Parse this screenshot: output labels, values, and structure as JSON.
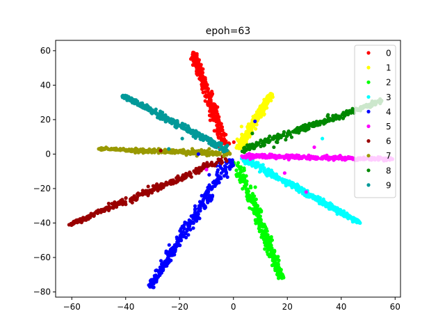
{
  "chart_data": {
    "type": "scatter",
    "title": "epoh=63",
    "xlabel": "",
    "ylabel": "",
    "xlim": [
      -66,
      62
    ],
    "ylim": [
      -83,
      66
    ],
    "xticks": [
      -60,
      -40,
      -20,
      0,
      20,
      40,
      60
    ],
    "yticks": [
      -80,
      -60,
      -40,
      -20,
      0,
      20,
      40,
      60
    ],
    "xtick_labels": [
      "−60",
      "−40",
      "−20",
      "0",
      "20",
      "40",
      "60"
    ],
    "ytick_labels": [
      "−80",
      "−60",
      "−40",
      "−20",
      "0",
      "20",
      "40",
      "60"
    ],
    "grid": false,
    "legend_position": "top-right",
    "series": [
      {
        "name": "0",
        "color": "#ff0000",
        "start": [
          -3,
          5
        ],
        "end": [
          -15,
          59
        ],
        "width": 1.6
      },
      {
        "name": "1",
        "color": "#ffff00",
        "start": [
          2,
          3
        ],
        "end": [
          14,
          35
        ],
        "width": 1.4
      },
      {
        "name": "2",
        "color": "#00ff00",
        "start": [
          1,
          -4
        ],
        "end": [
          18,
          -72
        ],
        "width": 1.8
      },
      {
        "name": "3",
        "color": "#00ffff",
        "start": [
          3,
          -2
        ],
        "end": [
          47,
          -40
        ],
        "width": 1.6
      },
      {
        "name": "4",
        "color": "#0000ff",
        "start": [
          -1,
          -3
        ],
        "end": [
          -31,
          -77
        ],
        "width": 2.0
      },
      {
        "name": "5",
        "color": "#ff00ff",
        "start": [
          3,
          -1
        ],
        "end": [
          59,
          -3
        ],
        "width": 1.2
      },
      {
        "name": "6",
        "color": "#990000",
        "start": [
          -2,
          -2
        ],
        "end": [
          -61,
          -41
        ],
        "width": 1.6
      },
      {
        "name": "7",
        "color": "#999900",
        "start": [
          -1,
          0
        ],
        "end": [
          -50,
          3
        ],
        "width": 1.2
      },
      {
        "name": "8",
        "color": "#008800",
        "start": [
          3,
          2
        ],
        "end": [
          55,
          31
        ],
        "width": 1.6
      },
      {
        "name": "9",
        "color": "#009999",
        "start": [
          -2,
          2
        ],
        "end": [
          -41,
          34
        ],
        "width": 1.6
      }
    ],
    "outliers": [
      {
        "x": 8,
        "y": 19,
        "color": "#0000ff"
      },
      {
        "x": 30,
        "y": 4,
        "color": "#ff00ff"
      },
      {
        "x": 19,
        "y": -11,
        "color": "#ff00ff"
      },
      {
        "x": 27,
        "y": -22,
        "color": "#ff00ff"
      },
      {
        "x": -19,
        "y": 9,
        "color": "#009999"
      },
      {
        "x": -24,
        "y": 3,
        "color": "#009999"
      },
      {
        "x": -6,
        "y": 6,
        "color": "#009999"
      },
      {
        "x": 7,
        "y": 12,
        "color": "#008800"
      },
      {
        "x": 15,
        "y": 4,
        "color": "#008800"
      },
      {
        "x": -10,
        "y": -9,
        "color": "#ff00ff"
      },
      {
        "x": -27,
        "y": 2,
        "color": "#990000"
      },
      {
        "x": -9,
        "y": -12,
        "color": "#0000ff"
      },
      {
        "x": -5,
        "y": -7,
        "color": "#0000ff"
      },
      {
        "x": 33,
        "y": 9,
        "color": "#00ffff"
      },
      {
        "x": 19,
        "y": -15,
        "color": "#00ffff"
      },
      {
        "x": -9,
        "y": 3,
        "color": "#999900"
      },
      {
        "x": 3,
        "y": 16,
        "color": "#ffff00"
      },
      {
        "x": -13,
        "y": 0,
        "color": "#0000ff"
      }
    ]
  }
}
